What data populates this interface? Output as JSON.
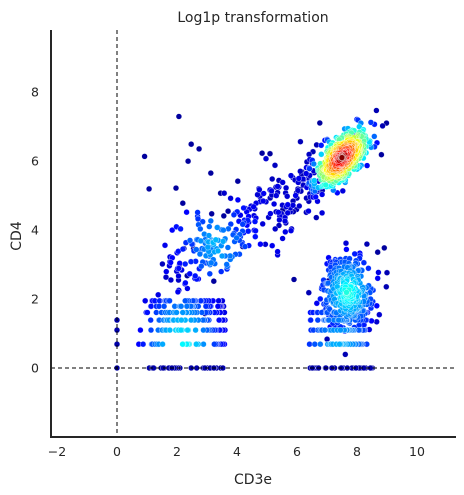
{
  "chart_data": {
    "type": "scatter",
    "title": "Log1p transformation",
    "xlabel": "CD3e",
    "ylabel": "CD4",
    "xlim": [
      -2.2,
      11.3
    ],
    "ylim": [
      -2.0,
      9.8
    ],
    "xticks": [
      -2,
      0,
      2,
      4,
      6,
      8,
      10
    ],
    "yticks": [
      0,
      2,
      4,
      6,
      8
    ],
    "x_tick_labels": [
      "−2",
      "0",
      "2",
      "4",
      "6",
      "8",
      "10"
    ],
    "y_tick_labels": [
      "0",
      "2",
      "4",
      "6",
      "8"
    ],
    "threshold_lines": {
      "x": 0,
      "y": 0,
      "style": "dashed"
    },
    "grid": false,
    "colormap": "jet (point density)",
    "point_color_low": "#00008b",
    "point_color_high": "#8b0000",
    "clusters": [
      {
        "description": "CD3e+ CD4+ dense population",
        "center": [
          7.5,
          6.1
        ],
        "spread": [
          0.45,
          0.38
        ],
        "count": 520,
        "density": "high"
      },
      {
        "description": "CD3e+ CD4- population",
        "center": [
          7.7,
          2.2
        ],
        "spread": [
          0.45,
          0.55
        ],
        "count": 300,
        "density": "medium"
      },
      {
        "description": "diagonal bridge",
        "x_range": [
          1.8,
          6.8
        ],
        "y_range": [
          2.5,
          5.7
        ],
        "count": 280,
        "density": "low"
      },
      {
        "description": "low-left streaks at discrete CD4 levels",
        "x_range": [
          0.7,
          3.6
        ],
        "y_levels": [
          0.69,
          1.1,
          1.39,
          1.61,
          1.79,
          1.95
        ],
        "count": 170,
        "density": "medium"
      },
      {
        "description": "low-right streaks at discrete CD4 levels",
        "x_range": [
          6.4,
          8.4
        ],
        "y_levels": [
          0.69,
          1.1,
          1.39,
          1.61
        ],
        "count": 120,
        "density": "medium"
      },
      {
        "description": "CD4 = 0 row",
        "y": 0,
        "x_range": [
          1.0,
          8.6
        ],
        "count": 60,
        "density": "low"
      },
      {
        "description": "CD3e = 0 column",
        "x": 0,
        "y_values": [
          0,
          0.69,
          1.1,
          1.39
        ],
        "count": 4,
        "density": "low"
      }
    ]
  }
}
